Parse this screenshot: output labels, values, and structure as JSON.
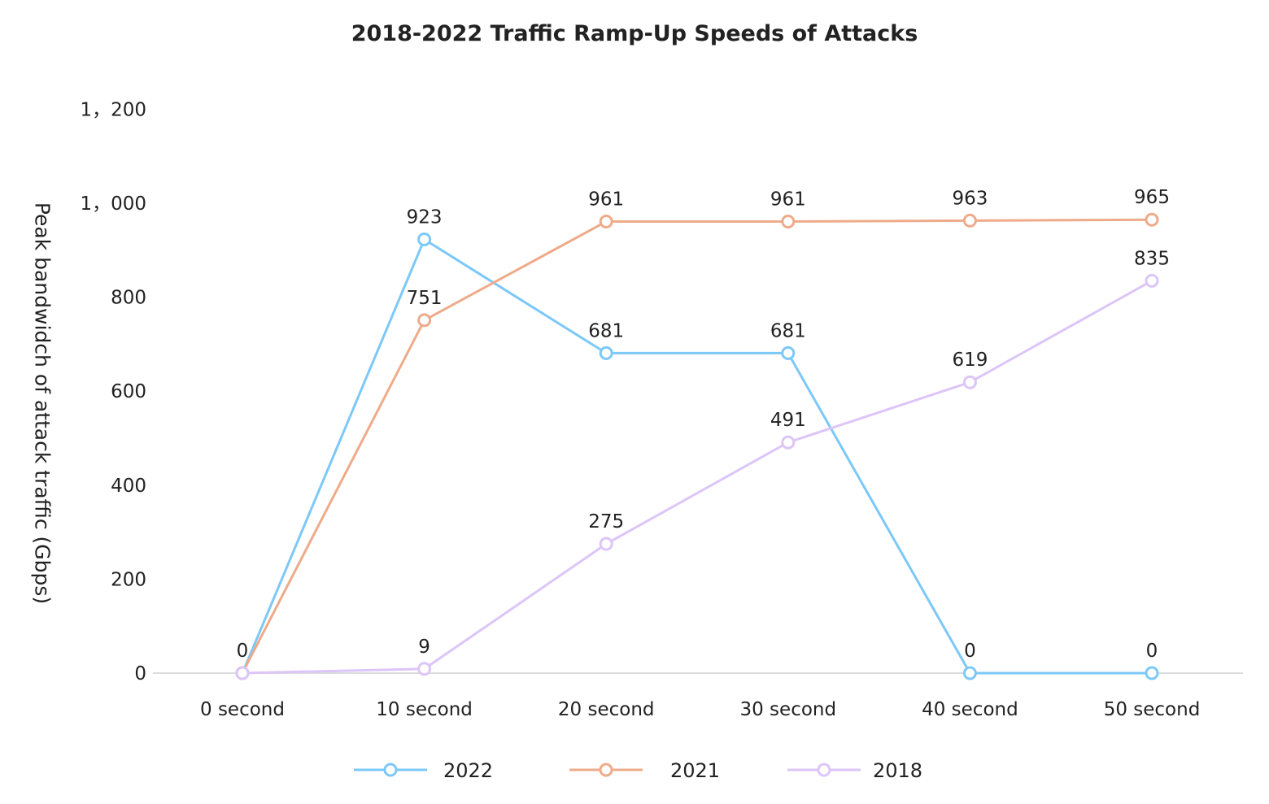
{
  "chart_data": {
    "type": "line",
    "title": "2018-2022 Traffic Ramp-Up Speeds of Attacks",
    "xlabel": "",
    "ylabel": "Peak bandwidch of attack traffic (Gbps)",
    "categories": [
      "0 second",
      "10 second",
      "20 second",
      "30 second",
      "40 second",
      "50 second"
    ],
    "ylim": [
      0,
      1200
    ],
    "yticks": [
      0,
      200,
      400,
      600,
      800,
      1000,
      1200
    ],
    "ytick_labels": [
      "0",
      "200",
      "400",
      "600",
      "800",
      "1，000",
      "1，200"
    ],
    "grid": false,
    "legend_position": "bottom",
    "data_labels": true,
    "series": [
      {
        "name": "2022",
        "color": "#7cc8f8",
        "values": [
          0,
          923,
          681,
          681,
          0,
          0
        ]
      },
      {
        "name": "2021",
        "color": "#eeab8a",
        "values": [
          0,
          751,
          961,
          961,
          963,
          965
        ]
      },
      {
        "name": "2018",
        "color": "#dcc5f8",
        "values": [
          0,
          9,
          275,
          491,
          619,
          835
        ]
      }
    ]
  }
}
